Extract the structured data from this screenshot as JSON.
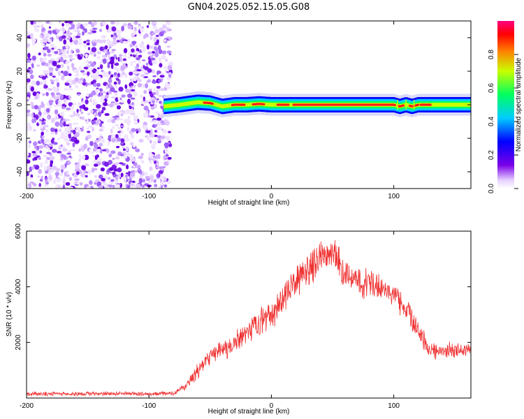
{
  "title": "GN04.2025.052.15.05.G08",
  "chart_data": [
    {
      "type": "heatmap",
      "title": "GN04.2025.052.15.05.G08",
      "xlabel": "Height of straight line (km)",
      "ylabel": "Frequency (Hz)",
      "xlim": [
        -200,
        163
      ],
      "ylim": [
        -50,
        50
      ],
      "x_ticks": [
        -200,
        -100,
        0,
        100
      ],
      "y_ticks": [
        -40,
        -20,
        0,
        20,
        40
      ],
      "colorbar": {
        "label": "Normalized spectral amplitude",
        "range": [
          0,
          1
        ],
        "ticks": [
          "0.0",
          "0.2",
          "0.4",
          "0.6",
          "0.8"
        ],
        "colors": [
          "#ffffff",
          "#7a00e8",
          "#0000ff",
          "#00ccff",
          "#00ff60",
          "#c8ff00",
          "#ff8000",
          "#ff0000",
          "#ff0080"
        ]
      },
      "noise_region_x": [
        -200,
        -82
      ],
      "signal_start_x": -88,
      "signal_ridge": {
        "x": [
          -88,
          -75,
          -60,
          -50,
          -40,
          -30,
          -20,
          -10,
          0,
          10,
          20,
          40,
          60,
          80,
          100,
          105,
          110,
          115,
          120,
          125,
          130,
          140,
          150,
          163
        ],
        "y": [
          -1,
          0,
          1.5,
          1,
          -1,
          0,
          0,
          0.5,
          0,
          0,
          0,
          0,
          0,
          0,
          0,
          -1,
          0,
          -1,
          0,
          0,
          0,
          0,
          0,
          0
        ]
      }
    },
    {
      "type": "line",
      "xlabel": "Height of straight line (km)",
      "ylabel": "SNR (10 * v/v)",
      "xlim": [
        -200,
        163
      ],
      "ylim": [
        0,
        6000
      ],
      "x_ticks": [
        -200,
        -100,
        0,
        100
      ],
      "y_ticks": [
        2000,
        4000,
        6000
      ],
      "series": [
        {
          "name": "SNR",
          "color": "#ef3030",
          "x": [
            -200,
            -150,
            -100,
            -80,
            -70,
            -60,
            -50,
            -40,
            -30,
            -20,
            -10,
            0,
            10,
            20,
            30,
            40,
            50,
            60,
            70,
            80,
            90,
            100,
            110,
            120,
            130,
            140,
            150,
            163
          ],
          "values": [
            150,
            150,
            150,
            170,
            400,
            1000,
            1500,
            1700,
            1900,
            2300,
            2700,
            3000,
            3600,
            4200,
            4600,
            5100,
            5300,
            4400,
            4200,
            4100,
            4000,
            3700,
            3200,
            2400,
            1700,
            1700,
            1700,
            1800
          ],
          "noise_amplitude": [
            90,
            90,
            90,
            90,
            200,
            350,
            400,
            450,
            500,
            550,
            600,
            600,
            650,
            700,
            700,
            750,
            750,
            700,
            650,
            650,
            600,
            550,
            500,
            450,
            350,
            350,
            350,
            350
          ]
        }
      ]
    }
  ]
}
